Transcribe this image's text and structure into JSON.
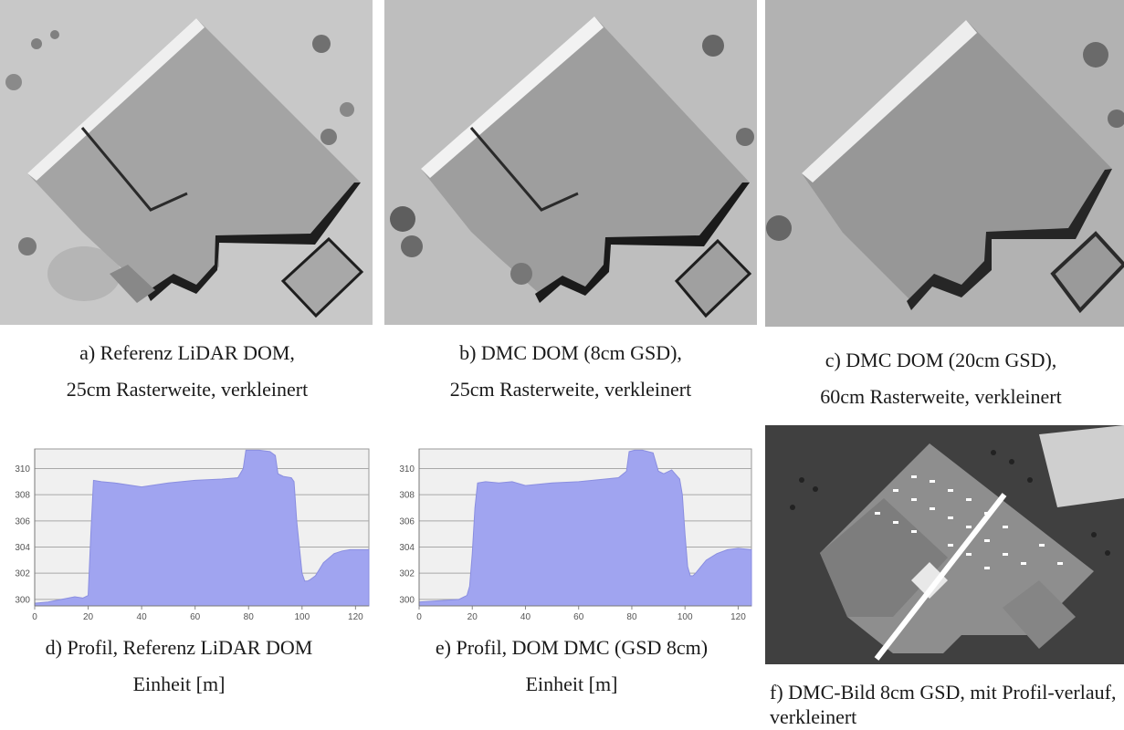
{
  "figures": {
    "a": {
      "caption1": "a) Referenz LiDAR DOM,",
      "caption2": "25cm Rasterweite, verkleinert"
    },
    "b": {
      "caption1": "b) DMC DOM (8cm GSD),",
      "caption2": "25cm Rasterweite, verkleinert"
    },
    "c": {
      "caption1": "c) DMC DOM (20cm GSD),",
      "caption2": "60cm Rasterweite, verkleinert"
    },
    "d": {
      "caption1": "d) Profil, Referenz LiDAR DOM",
      "caption2": "Einheit [m]"
    },
    "e": {
      "caption1": "e) Profil, DOM DMC (GSD 8cm)",
      "caption2": "Einheit [m]"
    },
    "f": {
      "caption": "f) DMC-Bild 8cm GSD, mit Profil-verlauf, verkleinert"
    }
  },
  "chart_data": [
    {
      "type": "area",
      "title": "",
      "xlabel": "",
      "ylabel": "",
      "xlim": [
        0,
        125
      ],
      "ylim": [
        299.5,
        311.5
      ],
      "x_ticks": [
        "0",
        "20",
        "40",
        "60",
        "80",
        "100",
        "120"
      ],
      "y_ticks": [
        "300",
        "302",
        "304",
        "306",
        "308",
        "310"
      ],
      "grid": true,
      "fill_color": "#a0a4f0",
      "series": [
        {
          "x": [
            0,
            5,
            10,
            15,
            18,
            20,
            21,
            22,
            25,
            30,
            40,
            50,
            60,
            70,
            76,
            78,
            79,
            84,
            88,
            90,
            91,
            93,
            96,
            97,
            98,
            100,
            101,
            102,
            103,
            105,
            108,
            112,
            115,
            118,
            121,
            125
          ],
          "y": [
            299.7,
            299.8,
            300.0,
            300.2,
            300.1,
            300.3,
            305.0,
            309.1,
            309.0,
            308.9,
            308.6,
            308.9,
            309.1,
            309.2,
            309.3,
            310.0,
            311.4,
            311.4,
            311.3,
            311.0,
            309.6,
            309.4,
            309.3,
            309.0,
            306.0,
            302.0,
            301.4,
            301.4,
            301.5,
            301.8,
            302.8,
            303.5,
            303.7,
            303.8,
            303.8,
            303.8
          ]
        }
      ]
    },
    {
      "type": "area",
      "title": "",
      "xlabel": "",
      "ylabel": "",
      "xlim": [
        0,
        125
      ],
      "ylim": [
        299.5,
        311.5
      ],
      "x_ticks": [
        "0",
        "20",
        "40",
        "60",
        "80",
        "100",
        "120"
      ],
      "y_ticks": [
        "300",
        "302",
        "304",
        "306",
        "308",
        "310"
      ],
      "grid": true,
      "fill_color": "#a0a4f0",
      "series": [
        {
          "x": [
            0,
            8,
            15,
            18,
            19,
            20,
            21,
            22,
            25,
            30,
            35,
            40,
            50,
            60,
            70,
            75,
            78,
            79,
            81,
            84,
            88,
            90,
            92,
            95,
            98,
            99,
            100,
            101,
            102,
            103,
            104,
            106,
            108,
            112,
            116,
            120,
            125
          ],
          "y": [
            299.8,
            299.9,
            300.0,
            300.3,
            301.0,
            303.5,
            307.0,
            308.9,
            309.0,
            308.9,
            309.0,
            308.7,
            308.9,
            309.0,
            309.2,
            309.3,
            309.8,
            311.3,
            311.4,
            311.4,
            311.2,
            309.8,
            309.6,
            309.9,
            309.2,
            308.0,
            305.0,
            302.5,
            301.8,
            301.8,
            302.0,
            302.5,
            303.0,
            303.5,
            303.8,
            303.9,
            303.8
          ]
        }
      ]
    }
  ]
}
